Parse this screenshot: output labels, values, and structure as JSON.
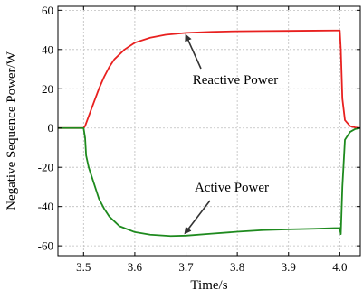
{
  "chart_data": {
    "type": "line",
    "xlabel": "Time/s",
    "ylabel": "Negative Sequence Power/W",
    "xlim": [
      3.45,
      4.04
    ],
    "ylim": [
      -65,
      62
    ],
    "x_ticks": [
      "3.5",
      "3.6",
      "3.7",
      "3.8",
      "3.9",
      "4.0"
    ],
    "x_tick_values": [
      3.5,
      3.6,
      3.7,
      3.8,
      3.9,
      4.0
    ],
    "y_ticks": [
      "60",
      "40",
      "20",
      "0",
      "-20",
      "-40",
      "-60"
    ],
    "y_tick_values": [
      60,
      40,
      20,
      0,
      -20,
      -40,
      -60
    ],
    "grid": true,
    "annotations": [
      {
        "text": "Reactive Power",
        "series": "Reactive Power"
      },
      {
        "text": "Active Power",
        "series": "Active Power"
      }
    ],
    "series": [
      {
        "name": "Reactive Power",
        "color": "#e8201f",
        "x": [
          3.45,
          3.5,
          3.503,
          3.51,
          3.52,
          3.53,
          3.54,
          3.55,
          3.56,
          3.58,
          3.6,
          3.63,
          3.66,
          3.7,
          3.75,
          3.8,
          3.85,
          3.9,
          3.95,
          3.99,
          4.0,
          4.002,
          4.005,
          4.01,
          4.02,
          4.03,
          4.04
        ],
        "y": [
          0,
          0,
          1,
          6,
          13,
          20,
          26,
          31,
          35,
          40,
          43.5,
          46,
          47.5,
          48.5,
          49,
          49.3,
          49.4,
          49.5,
          49.6,
          49.7,
          49.7,
          40,
          15,
          4,
          1,
          0.3,
          0
        ]
      },
      {
        "name": "Active Power",
        "color": "#1e8a1e",
        "x": [
          3.45,
          3.5,
          3.503,
          3.505,
          3.51,
          3.52,
          3.53,
          3.54,
          3.55,
          3.57,
          3.6,
          3.63,
          3.67,
          3.7,
          3.75,
          3.8,
          3.85,
          3.9,
          3.95,
          3.99,
          4.0,
          4.002,
          4.005,
          4.01,
          4.02,
          4.03,
          4.04
        ],
        "y": [
          0,
          0,
          -5,
          -14,
          -20,
          -28,
          -36,
          -41,
          -45,
          -50,
          -53,
          -54.3,
          -55,
          -54.8,
          -53.8,
          -52.8,
          -52,
          -51.6,
          -51.3,
          -51,
          -51,
          -54,
          -30,
          -6,
          -2,
          -0.5,
          0
        ]
      }
    ]
  }
}
